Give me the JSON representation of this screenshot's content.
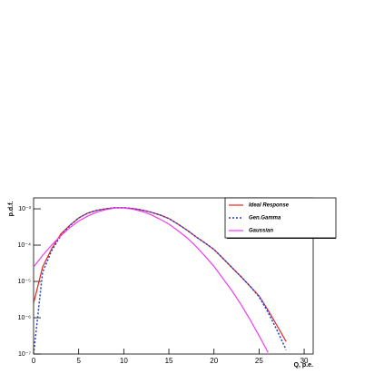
{
  "chart_data": {
    "type": "line",
    "xlabel": "Q, p.e.",
    "ylabel": "p.d.f.",
    "x": [
      0,
      1,
      2,
      3,
      4,
      5,
      6,
      7,
      8,
      9,
      10,
      11,
      12,
      13,
      14,
      15,
      16,
      17,
      18,
      19,
      20,
      21,
      22,
      23,
      24,
      25,
      26,
      27,
      28
    ],
    "series": [
      {
        "name": "Ideal Response",
        "color": "#e8251b",
        "style": "solid",
        "values": [
          2.5e-06,
          2.5e-05,
          7.9e-05,
          0.0002,
          0.00035,
          0.00056,
          0.00076,
          0.00091,
          0.001,
          0.00107,
          0.00107,
          0.00102,
          0.00093,
          0.00081,
          0.00068,
          0.00054,
          0.00038,
          0.00026,
          0.00017,
          0.000115,
          7.6e-05,
          4.3e-05,
          2.4e-05,
          1.35e-05,
          7.4e-06,
          4e-06,
          1.6e-06,
          6e-07,
          2.2e-07
        ]
      },
      {
        "name": "Gen.Gamma",
        "color": "#1f3fd6",
        "style": "dashed",
        "values": [
          1e-07,
          1.8e-05,
          7e-05,
          0.00018,
          0.00034,
          0.00056,
          0.00076,
          0.00091,
          0.001,
          0.00107,
          0.00107,
          0.00102,
          0.00093,
          0.00081,
          0.00068,
          0.00054,
          0.00038,
          0.00026,
          0.00017,
          0.000115,
          7.6e-05,
          4.3e-05,
          2.4e-05,
          1.35e-05,
          7.4e-06,
          3.8e-06,
          1.4e-06,
          4.5e-07,
          1.3e-07
        ]
      },
      {
        "name": "Gaussian",
        "color": "#f23cf2",
        "style": "solid",
        "values": [
          2.5e-05,
          5.2e-05,
          0.0001,
          0.00018,
          0.0003,
          0.00046,
          0.00063,
          0.00081,
          0.00095,
          0.00105,
          0.00105,
          0.00098,
          0.00085,
          0.00069,
          0.00052,
          0.00038,
          0.00025,
          0.00016,
          9.3e-05,
          5e-05,
          2.6e-05,
          1.2e-05,
          5.5e-06,
          2.3e-06,
          8.9e-07,
          3.2e-07,
          1.1e-07,
          null,
          null
        ]
      }
    ],
    "xlim": [
      0,
      31
    ],
    "xticks": [
      0,
      5,
      10,
      15,
      20,
      25,
      30
    ],
    "ylim": [
      1e-07,
      0.002
    ],
    "ylog": true,
    "yticks": [
      {
        "value": 1e-07,
        "label": "10⁻⁷"
      },
      {
        "value": 1e-06,
        "label": "10⁻⁶"
      },
      {
        "value": 1e-05,
        "label": "10⁻⁵"
      },
      {
        "value": 0.0001,
        "label": "10⁻⁴"
      },
      {
        "value": 0.001,
        "label": "10⁻³"
      }
    ],
    "legend": "upper right"
  }
}
